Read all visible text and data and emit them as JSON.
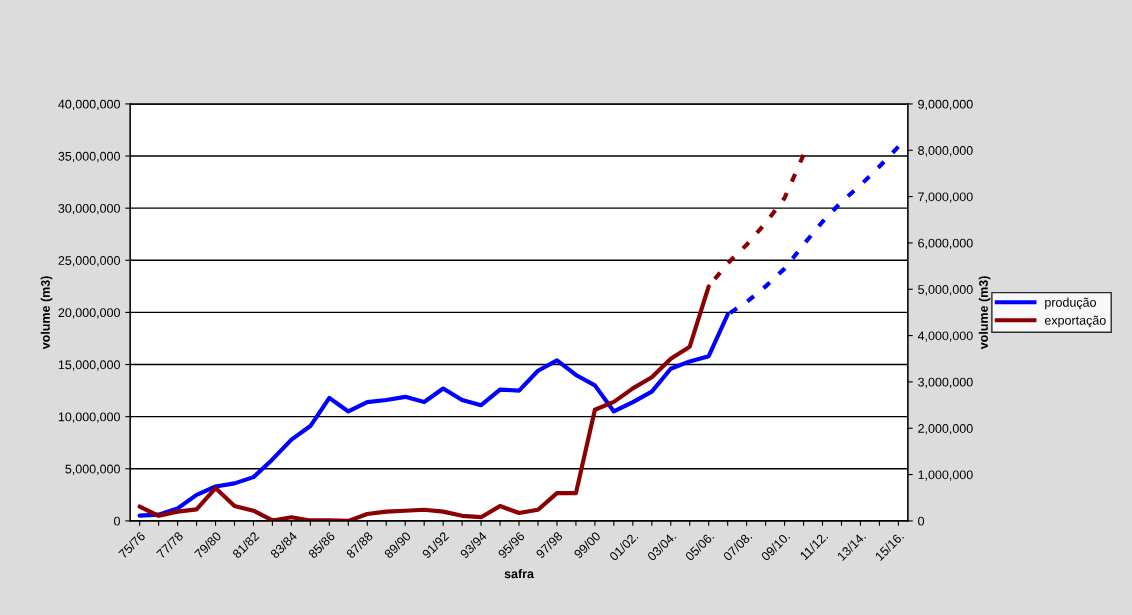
{
  "chart_data": {
    "type": "line",
    "xlabel": "safra",
    "ylabel": "volume (m3)",
    "y2label": "volume (m3)",
    "categories": [
      "75/76",
      null,
      "77/78",
      null,
      "79/80",
      null,
      "81/82",
      null,
      "83/84",
      null,
      "85/86",
      null,
      "87/88",
      null,
      "89/90",
      null,
      "91/92",
      null,
      "93/94",
      null,
      "95/96",
      null,
      "97/98",
      null,
      "99/00",
      null,
      "01/02.",
      null,
      "03/04.",
      null,
      "05/06.",
      null,
      "07/08.",
      null,
      "09/10.",
      null,
      "11/12.",
      null,
      "13/14.",
      null,
      "15/16."
    ],
    "series": [
      {
        "name": "produção",
        "color": "#0000ff",
        "line_style": "solid",
        "values": [
          500000.0,
          600000.0,
          1200000.0,
          2500000.0,
          3300000.0,
          3600000.0,
          4200000.0,
          5900000.0,
          7800000.0,
          9100000.0,
          11800000.0,
          10500000.0,
          11400000.0,
          11600000.0,
          11900000.0,
          11400000.0,
          12700000.0,
          11600000.0,
          11100000.0,
          12600000.0,
          12500000.0,
          14400000.0,
          15400000.0,
          14000000.0,
          13000000.0,
          10500000.0,
          11400000.0,
          12400000.0,
          14600000.0,
          15300000.0,
          15800000.0,
          19800000.0,
          null,
          null,
          null,
          null,
          null,
          null,
          null,
          null,
          null
        ]
      },
      {
        "name": "exportação",
        "color": "#8b0000",
        "axis": "y2",
        "line_style": "solid",
        "values": [
          310000.0,
          110000.0,
          200000.0,
          250000.0,
          710000.0,
          320000.0,
          220000.0,
          10000.0,
          80000.0,
          10000.0,
          10000.0,
          0,
          150000.0,
          200000.0,
          220000.0,
          240000.0,
          200000.0,
          110000.0,
          80000.0,
          320000.0,
          170000.0,
          240000.0,
          600000.0,
          600000.0,
          2400000.0,
          2570000.0,
          2860000.0,
          3100000.0,
          3500000.0,
          3760000.0,
          5060000.0,
          null,
          null,
          null,
          null,
          null,
          null,
          null,
          null,
          null,
          null
        ]
      },
      {
        "color": "#0000ff",
        "line_style": "dashed",
        "values": [
          null,
          null,
          null,
          null,
          null,
          null,
          null,
          null,
          null,
          null,
          null,
          null,
          null,
          null,
          null,
          null,
          null,
          null,
          null,
          null,
          null,
          null,
          null,
          null,
          null,
          null,
          null,
          null,
          null,
          null,
          null,
          19800000.0,
          21000000.0,
          22500000.0,
          24200000.0,
          26500000.0,
          28700000.0,
          30600000.0,
          32200000.0,
          34000000.0,
          35900000.0
        ]
      },
      {
        "color": "#8b0000",
        "axis": "y2",
        "line_style": "dashed",
        "values": [
          null,
          null,
          null,
          null,
          null,
          null,
          null,
          null,
          null,
          null,
          null,
          null,
          null,
          null,
          null,
          null,
          null,
          null,
          null,
          null,
          null,
          null,
          null,
          null,
          null,
          null,
          null,
          null,
          null,
          null,
          5060000.0,
          5560000.0,
          5960000.0,
          6430000.0,
          6970000.0,
          7900000.0,
          null,
          null,
          null,
          null,
          null
        ]
      }
    ],
    "ylim": [
      0,
      40000000
    ],
    "yticks": [
      0,
      {
        "value": 5000000,
        "label": "5,000,000"
      },
      {
        "value": 10000000,
        "label": "10,000,000"
      },
      {
        "value": 15000000,
        "label": "15,000,000"
      },
      {
        "value": 20000000,
        "label": "20,000,000"
      },
      {
        "value": 25000000,
        "label": "25,000,000"
      },
      {
        "value": 30000000,
        "label": "30,000,000"
      },
      {
        "value": 35000000,
        "label": "35,000,000"
      },
      {
        "value": 40000000,
        "label": "40,000,000"
      }
    ],
    "y2lim": [
      0,
      9000000
    ],
    "y2ticks": [
      0,
      {
        "value": 1000000,
        "label": "1,000,000"
      },
      {
        "value": 2000000,
        "label": "2,000,000"
      },
      {
        "value": 3000000,
        "label": "3,000,000"
      },
      {
        "value": 4000000,
        "label": "4,000,000"
      },
      {
        "value": 5000000,
        "label": "5,000,000"
      },
      {
        "value": 6000000,
        "label": "6,000,000"
      },
      {
        "value": 7000000,
        "label": "7,000,000"
      },
      {
        "value": 8000000,
        "label": "8,000,000"
      },
      {
        "value": 9000000,
        "label": "9,000,000"
      }
    ],
    "grid": "y",
    "legend": "right",
    "marker": "none"
  }
}
